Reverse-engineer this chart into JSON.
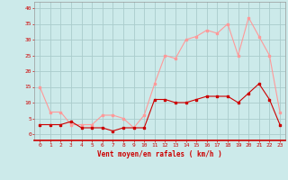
{
  "hours": [
    0,
    1,
    2,
    3,
    4,
    5,
    6,
    7,
    8,
    9,
    10,
    11,
    12,
    13,
    14,
    15,
    16,
    17,
    18,
    19,
    20,
    21,
    22,
    23
  ],
  "wind_avg": [
    3,
    3,
    3,
    4,
    2,
    2,
    2,
    1,
    2,
    2,
    2,
    11,
    11,
    10,
    10,
    11,
    12,
    12,
    12,
    10,
    13,
    16,
    11,
    3
  ],
  "wind_gust": [
    15,
    7,
    7,
    3,
    3,
    3,
    6,
    6,
    5,
    2,
    6,
    16,
    25,
    24,
    30,
    31,
    33,
    32,
    35,
    25,
    37,
    31,
    25,
    7
  ],
  "background_color": "#cceaea",
  "grid_color": "#aacccc",
  "avg_color": "#cc0000",
  "gust_color": "#ff9999",
  "xlabel": "Vent moyen/en rafales ( km/h )",
  "xlabel_color": "#cc0000",
  "tick_color": "#cc0000",
  "yticks": [
    0,
    5,
    10,
    15,
    20,
    25,
    30,
    35,
    40
  ],
  "ylim": [
    -2,
    42
  ],
  "xlim": [
    -0.5,
    23.5
  ],
  "figsize": [
    3.2,
    2.0
  ],
  "dpi": 100
}
